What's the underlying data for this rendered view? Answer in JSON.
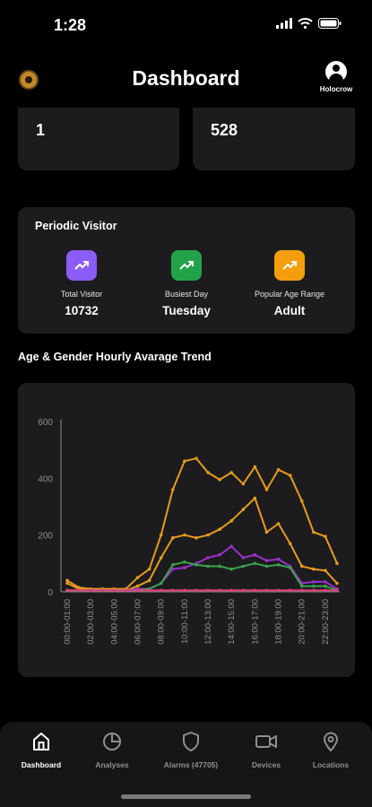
{
  "status": {
    "time": "1:28"
  },
  "header": {
    "title": "Dashboard",
    "username": "Holocrow"
  },
  "stats": {
    "left_value": "1",
    "right_value": "528"
  },
  "periodic": {
    "title": "Periodic Visitor",
    "items": [
      {
        "label": "Total Visitor",
        "value": "10732",
        "color": "#8b5cf6"
      },
      {
        "label": "Busiest Day",
        "value": "Tuesday",
        "color": "#22a34a"
      },
      {
        "label": "Popular Age Range",
        "value": "Adult",
        "color": "#f59e0b"
      }
    ]
  },
  "trend": {
    "title": "Age & Gender Hourly Avarage Trend"
  },
  "chart_data": {
    "type": "line",
    "categories": [
      "00:00-01:00",
      "01:00-02:00",
      "02:00-03:00",
      "03:00-04:00",
      "04:00-05:00",
      "05:00-06:00",
      "06:00-07:00",
      "07:00-08:00",
      "08:00-09:00",
      "09:00-10:00",
      "10:00-11:00",
      "11:00-12:00",
      "12:00-13:00",
      "13:00-14:00",
      "14:00-15:00",
      "15:00-16:00",
      "16:00-17:00",
      "17:00-18:00",
      "18:00-19:00",
      "19:00-20:00",
      "20:00-21:00",
      "21:00-22:00",
      "22:00-23:00",
      "23:00-24:00"
    ],
    "tick_labels": [
      "00:00-01:00",
      "02:00-03:00",
      "04:00-05:00",
      "06:00-07:00",
      "08:00-09:00",
      "10:00-11:00",
      "12:00-13:00",
      "14:00-15:00",
      "16:00-17:00",
      "18:00-19:00",
      "20:00-21:00",
      "22:00-23:00"
    ],
    "yticks": [
      0,
      200,
      400,
      600
    ],
    "ylim": [
      0,
      600
    ],
    "series": [
      {
        "color": "#e69a1f",
        "values": [
          40,
          15,
          10,
          10,
          10,
          10,
          50,
          80,
          200,
          360,
          460,
          470,
          420,
          395,
          420,
          380,
          440,
          360,
          430,
          410,
          320,
          210,
          195,
          100
        ]
      },
      {
        "color": "#e69a1f",
        "values": [
          30,
          10,
          5,
          5,
          5,
          5,
          20,
          40,
          120,
          190,
          200,
          190,
          200,
          220,
          250,
          290,
          330,
          210,
          240,
          170,
          90,
          80,
          75,
          30
        ]
      },
      {
        "color": "#9b30c8",
        "values": [
          5,
          5,
          5,
          5,
          5,
          5,
          10,
          10,
          30,
          80,
          85,
          100,
          120,
          130,
          160,
          120,
          130,
          110,
          115,
          90,
          30,
          35,
          35,
          10
        ]
      },
      {
        "color": "#3aa14a",
        "values": [
          5,
          5,
          5,
          5,
          5,
          5,
          5,
          10,
          30,
          95,
          105,
          95,
          90,
          90,
          80,
          90,
          100,
          90,
          95,
          85,
          20,
          20,
          20,
          5
        ]
      },
      {
        "color": "#e0407a",
        "values": [
          5,
          5,
          5,
          5,
          5,
          5,
          5,
          5,
          5,
          5,
          5,
          5,
          5,
          5,
          5,
          5,
          5,
          5,
          5,
          5,
          5,
          5,
          5,
          5
        ]
      }
    ]
  },
  "tabs": [
    {
      "label": "Dashboard",
      "icon": "home-icon"
    },
    {
      "label": "Analyses",
      "icon": "pie-chart-icon"
    },
    {
      "label": "Alarms (47705)",
      "icon": "shield-icon"
    },
    {
      "label": "Devices",
      "icon": "camera-icon"
    },
    {
      "label": "Locations",
      "icon": "location-pin-icon"
    }
  ]
}
